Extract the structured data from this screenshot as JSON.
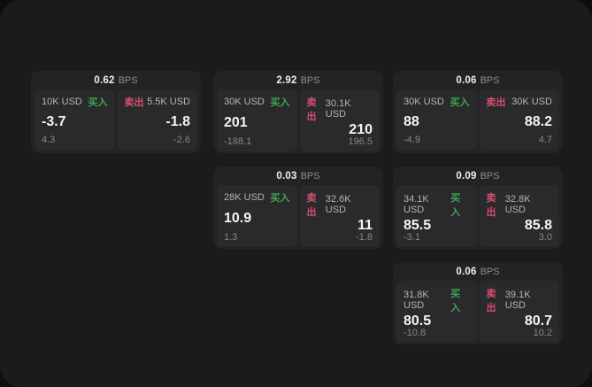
{
  "labels": {
    "bps_unit": "BPS",
    "buy": "买入",
    "sell": "卖出"
  },
  "colors": {
    "buy_green": "#3fa453",
    "sell_red": "#d4506a",
    "panel_bg": "#1b1b1d",
    "card_bg": "#232325",
    "quote_bg": "#2a2a2d"
  },
  "cards": [
    {
      "col": 0,
      "row": 0,
      "bps": "0.62",
      "buy": {
        "size": "10K USD",
        "price": "-3.7",
        "delta": "4.3"
      },
      "sell": {
        "size": "5.5K USD",
        "price": "-1.8",
        "delta": "-2.6"
      }
    },
    {
      "col": 1,
      "row": 0,
      "bps": "2.92",
      "buy": {
        "size": "30K USD",
        "price": "201",
        "delta": "-188.1"
      },
      "sell": {
        "size": "30.1K USD",
        "price": "210",
        "delta": "196.5"
      }
    },
    {
      "col": 2,
      "row": 0,
      "bps": "0.06",
      "buy": {
        "size": "30K USD",
        "price": "88",
        "delta": "-4.9"
      },
      "sell": {
        "size": "30K USD",
        "price": "88.2",
        "delta": "4.7"
      }
    },
    {
      "col": 1,
      "row": 1,
      "bps": "0.03",
      "buy": {
        "size": "28K USD",
        "price": "10.9",
        "delta": "1.3"
      },
      "sell": {
        "size": "32.6K USD",
        "price": "11",
        "delta": "-1.8"
      }
    },
    {
      "col": 2,
      "row": 1,
      "bps": "0.09",
      "buy": {
        "size": "34.1K USD",
        "price": "85.5",
        "delta": "-3.1"
      },
      "sell": {
        "size": "32.8K USD",
        "price": "85.8",
        "delta": "3.0"
      }
    },
    {
      "col": 2,
      "row": 2,
      "bps": "0.06",
      "buy": {
        "size": "31.8K USD",
        "price": "80.5",
        "delta": "-10.8"
      },
      "sell": {
        "size": "39.1K USD",
        "price": "80.7",
        "delta": "10.2"
      }
    }
  ]
}
